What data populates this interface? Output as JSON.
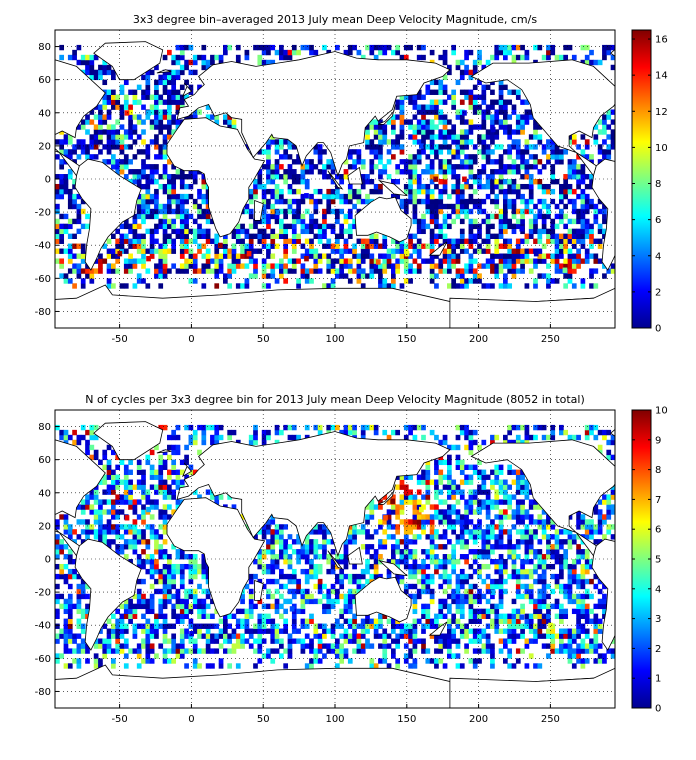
{
  "figure": {
    "panels": [
      {
        "title": "3x3 degree bin–averaged 2013 July mean Deep Velocity Magnitude, cm/s",
        "xticks": [
          "-50",
          "0",
          "50",
          "100",
          "150",
          "200",
          "250"
        ],
        "yticks": [
          "80",
          "60",
          "40",
          "20",
          "0",
          "-20",
          "-40",
          "-60",
          "-80"
        ],
        "cbar_ticks": [
          "16",
          "14",
          "12",
          "10",
          "8",
          "6",
          "4",
          "2",
          "0"
        ]
      },
      {
        "title": "N of cycles per 3x3 degree bin for 2013 July mean Deep Velocity Magnitude (8052 in total)",
        "xticks": [
          "-50",
          "0",
          "50",
          "100",
          "150",
          "200",
          "250"
        ],
        "yticks": [
          "80",
          "60",
          "40",
          "20",
          "0",
          "-20",
          "-40",
          "-60",
          "-80"
        ],
        "cbar_ticks": [
          "10",
          "9",
          "8",
          "7",
          "6",
          "5",
          "4",
          "3",
          "2",
          "1",
          "0"
        ]
      }
    ]
  },
  "chart_data": [
    {
      "type": "heatmap",
      "title": "3x3 degree bin–averaged 2013 July mean Deep Velocity Magnitude, cm/s",
      "xlabel": "",
      "ylabel": "",
      "xlim": [
        -95,
        295
      ],
      "ylim": [
        -90,
        90
      ],
      "bin_size_deg": 3,
      "colormap": "jet",
      "clim": [
        0,
        16.5
      ],
      "grid": true,
      "basemap": "world coastlines",
      "colorbar": "right",
      "representative_bins": [
        {
          "lon": 190,
          "lat": 40,
          "value": 1.5
        },
        {
          "lon": 210,
          "lat": 30,
          "value": 1.2
        },
        {
          "lon": 230,
          "lat": -30,
          "value": 1.5
        },
        {
          "lon": 240,
          "lat": -45,
          "value": 1.0
        },
        {
          "lon": 170,
          "lat": 0,
          "value": 16
        },
        {
          "lon": 190,
          "lat": 0,
          "value": 15
        },
        {
          "lon": 160,
          "lat": 20,
          "value": 3
        },
        {
          "lon": -30,
          "lat": 40,
          "value": 5
        },
        {
          "lon": -45,
          "lat": 40,
          "value": 14
        },
        {
          "lon": -50,
          "lat": -45,
          "value": 16
        },
        {
          "lon": -30,
          "lat": -48,
          "value": 15
        },
        {
          "lon": 20,
          "lat": -40,
          "value": 16
        },
        {
          "lon": 40,
          "lat": -45,
          "value": 14
        },
        {
          "lon": 80,
          "lat": -48,
          "value": 16
        },
        {
          "lon": 130,
          "lat": -50,
          "value": 13
        },
        {
          "lon": 150,
          "lat": -45,
          "value": 10
        },
        {
          "lon": 260,
          "lat": -55,
          "value": 8
        },
        {
          "lon": 60,
          "lat": -20,
          "value": 4
        },
        {
          "lon": 80,
          "lat": -10,
          "value": 2
        }
      ]
    },
    {
      "type": "heatmap",
      "title": "N of cycles per 3x3 degree bin for 2013 July mean Deep Velocity Magnitude (8052 in total)",
      "xlabel": "",
      "ylabel": "",
      "xlim": [
        -95,
        295
      ],
      "ylim": [
        -90,
        90
      ],
      "bin_size_deg": 3,
      "colormap": "jet",
      "clim": [
        0,
        10
      ],
      "grid": true,
      "basemap": "world coastlines",
      "colorbar": "right",
      "total_cycles": 8052,
      "representative_bins": [
        {
          "lon": 140,
          "lat": 35,
          "value": 10
        },
        {
          "lon": 150,
          "lat": 40,
          "value": 9
        },
        {
          "lon": 135,
          "lat": 25,
          "value": 8
        },
        {
          "lon": 160,
          "lat": 30,
          "value": 6
        },
        {
          "lon": 200,
          "lat": 30,
          "value": 3
        },
        {
          "lon": 230,
          "lat": -35,
          "value": 2
        },
        {
          "lon": 210,
          "lat": -20,
          "value": 3
        },
        {
          "lon": -30,
          "lat": 30,
          "value": 3
        },
        {
          "lon": -45,
          "lat": 25,
          "value": 9
        },
        {
          "lon": 70,
          "lat": -30,
          "value": 2
        },
        {
          "lon": 0,
          "lat": -45,
          "value": 1
        },
        {
          "lon": 250,
          "lat": -40,
          "value": 6
        }
      ]
    }
  ]
}
